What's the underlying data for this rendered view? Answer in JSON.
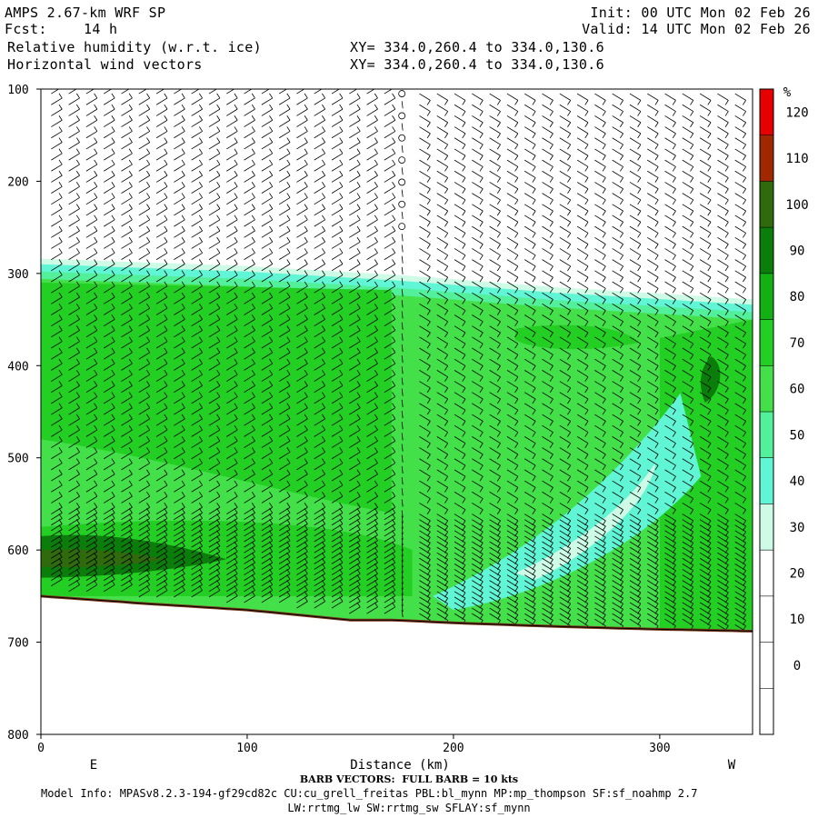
{
  "header": {
    "model": "AMPS 2.67-km WRF SP",
    "init": "Init: 00 UTC Mon 02 Feb 26",
    "fcst_label": "Fcst:",
    "fcst_value": "14 h",
    "valid": "Valid: 14 UTC Mon 02 Feb 26",
    "field1": "Relative humidity (w.r.t. ice)",
    "field2": "Horizontal wind vectors",
    "xy1": "XY= 334.0,260.4 to 334.0,130.6",
    "xy2": "XY= 334.0,260.4 to 334.0,130.6"
  },
  "footer": {
    "barb_note": "BARB VECTORS:  FULL BARB = 10 kts",
    "model_info": "Model Info: MPASv8.2.3-194-gf29cd82c CU:cu_grell_freitas PBL:bl_mynn MP:mp_thompson SF:sf_noahmp 2.7",
    "model_info2": "LW:rrtmg_lw SW:rrtmg_sw SFLAY:sf_mynn"
  },
  "colors": {
    "band_0": "#ffffff",
    "band_30": "#cdfbe6",
    "band_40": "#5ff5d5",
    "band_50": "#52f09a",
    "band_60": "#44e04a",
    "band_70": "#22cf22",
    "band_80": "#12b012",
    "band_90": "#0a7d0a",
    "band_100": "#2f6a0c",
    "band_110": "#a02800",
    "band_120": "#e60000",
    "terrain": "#7a3a1a"
  },
  "chart_data": {
    "type": "heatmap",
    "title": "Relative humidity (w.r.t. ice)",
    "xlabel": "Distance (km)",
    "ylabel": "",
    "xlim": [
      0,
      345
    ],
    "ylim": [
      800,
      100
    ],
    "x_ticks": [
      0,
      100,
      200,
      300
    ],
    "y_ticks": [
      100,
      200,
      300,
      400,
      500,
      600,
      700,
      800
    ],
    "endpoints": {
      "left": "E",
      "right": "W"
    },
    "colorbar": {
      "unit": "%",
      "levels": [
        0,
        10,
        20,
        30,
        40,
        50,
        60,
        70,
        80,
        90,
        100,
        110,
        120
      ]
    },
    "terrain_surface": {
      "x": [
        0,
        50,
        100,
        150,
        172,
        200,
        250,
        300,
        345
      ],
      "pressure": [
        650,
        658,
        665,
        676,
        676,
        679,
        683,
        686,
        688
      ]
    },
    "rh_structure": {
      "moist_layer_top_pressure": [
        284,
        292,
        302,
        315,
        328
      ],
      "moist_layer_top_x": [
        0,
        100,
        175,
        250,
        345
      ],
      "dry_region_above": "< 30"
    },
    "wind_barbs": "10 kt full barb, westerly flow aloft, calm column near x=172"
  }
}
